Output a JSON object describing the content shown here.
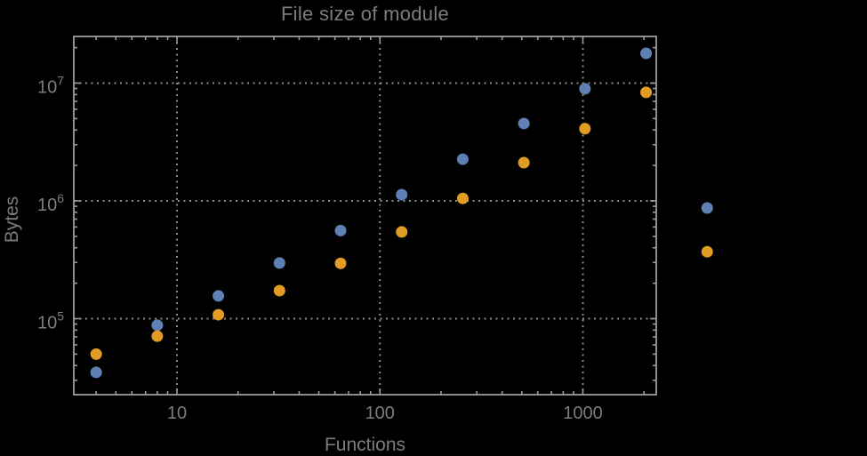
{
  "chart": {
    "title": "File size of module",
    "xlabel": "Functions",
    "ylabel": "Bytes",
    "legend": "none",
    "colors": {
      "background": "#000000",
      "frame": "#9B9B9B",
      "grid": "#8C8C8C",
      "text": "#7C7C7C",
      "series_blue": "#5E81B5",
      "series_orange": "#E19C24"
    }
  },
  "chart_data": {
    "type": "scatter",
    "title": "File size of module",
    "xlabel": "Functions",
    "ylabel": "Bytes",
    "x_scale": "log10",
    "y_scale": "log10",
    "grid": "dotted",
    "legend_position": "none",
    "x": [
      4,
      8,
      16,
      32,
      64,
      128,
      256,
      512,
      1024,
      2048,
      4096
    ],
    "series": [
      {
        "name": "blue",
        "color": "#5E81B5",
        "values": [
          35000,
          88000,
          156000,
          297000,
          560000,
          1130000,
          2260000,
          4540000,
          8950000,
          17900000,
          870000
        ]
      },
      {
        "name": "orange",
        "color": "#E19C24",
        "values": [
          50000,
          71000,
          108000,
          173000,
          295000,
          545000,
          1050000,
          2110000,
          4100000,
          8350000,
          370000
        ]
      }
    ],
    "x_ticks": [
      {
        "value": 10,
        "label": "10"
      },
      {
        "value": 100,
        "label": "100"
      },
      {
        "value": 1000,
        "label": "1000"
      }
    ],
    "y_ticks": [
      {
        "value": 100000,
        "mantissa": "10",
        "exponent": "5"
      },
      {
        "value": 1000000,
        "mantissa": "10",
        "exponent": "6"
      },
      {
        "value": 10000000,
        "mantissa": "10",
        "exponent": "7"
      }
    ],
    "x_axis_range": [
      3.1,
      2314
    ],
    "y_axis_range": [
      22600,
      24900000
    ],
    "note_points_outside_frame": "x=4096 pair is drawn beyond the right frame edge"
  }
}
